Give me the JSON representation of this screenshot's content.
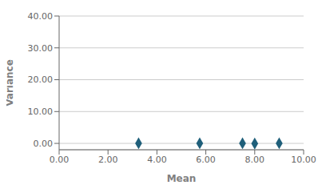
{
  "chart_data": {
    "type": "scatter",
    "x": [
      3.25,
      5.75,
      7.5,
      8.0,
      9.0
    ],
    "values": [
      0.04,
      0.04,
      0.04,
      -0.04,
      0.04
    ],
    "xlabel": "Mean",
    "ylabel": "Variance",
    "xlim": [
      0.0,
      10.0
    ],
    "ylim": [
      -2.0,
      40.0
    ],
    "xticks": [
      {
        "value": 0.0,
        "label": "0.00"
      },
      {
        "value": 2.0,
        "label": "2.00"
      },
      {
        "value": 4.0,
        "label": "4.00"
      },
      {
        "value": 6.0,
        "label": "6.00"
      },
      {
        "value": 8.0,
        "label": "8.00"
      },
      {
        "value": 10.0,
        "label": "10.00"
      }
    ],
    "yticks": [
      {
        "value": 0.0,
        "label": "0.00"
      },
      {
        "value": 10.0,
        "label": "10.00"
      },
      {
        "value": 20.0,
        "label": "20.00"
      },
      {
        "value": 30.0,
        "label": "30.00"
      },
      {
        "value": 40.0,
        "label": "40.00"
      }
    ],
    "color": "#1F5F7A",
    "marker": "diamond",
    "grid": "y"
  }
}
